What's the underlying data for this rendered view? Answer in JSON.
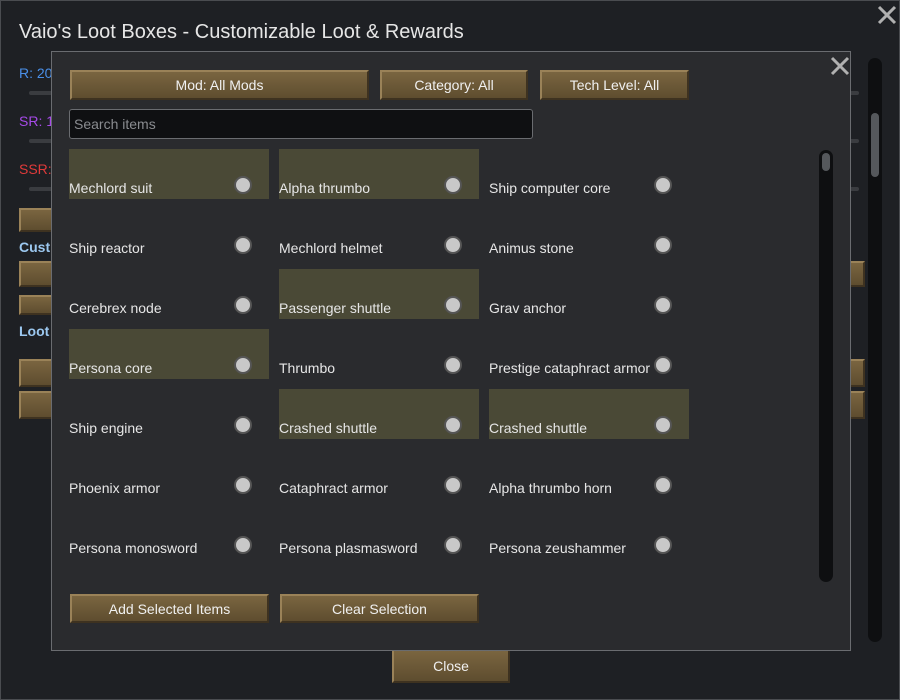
{
  "window": {
    "title": "Vaio's Loot Boxes - Customizable Loot & Rewards",
    "background_labels": [
      {
        "text": "R: 20",
        "color": "#4a8fe8"
      },
      {
        "text": "SR: 1",
        "color": "#a64ae8"
      },
      {
        "text": "SSR:",
        "color": "#e03a3a"
      },
      {
        "text": "Cust",
        "color": "#9cc8f0"
      },
      {
        "text": "Loot",
        "color": "#9cc8f0"
      }
    ],
    "close": "Close"
  },
  "dialog": {
    "filters": [
      "Mod: All Mods",
      "Category: All",
      "Tech Level: All"
    ],
    "search_placeholder": "Search items",
    "items": [
      {
        "label": "Mechlord suit",
        "selected": true
      },
      {
        "label": "Alpha thrumbo",
        "selected": true
      },
      {
        "label": "Ship computer core",
        "selected": false
      },
      {
        "label": "Ship reactor",
        "selected": false
      },
      {
        "label": "Mechlord helmet",
        "selected": false
      },
      {
        "label": "Animus stone",
        "selected": false
      },
      {
        "label": "Cerebrex node",
        "selected": false
      },
      {
        "label": "Passenger shuttle",
        "selected": true
      },
      {
        "label": "Grav anchor",
        "selected": false
      },
      {
        "label": "Persona core",
        "selected": true
      },
      {
        "label": "Thrumbo",
        "selected": false
      },
      {
        "label": "Prestige cataphract armor",
        "selected": false
      },
      {
        "label": "Ship engine",
        "selected": false
      },
      {
        "label": "Crashed shuttle",
        "selected": true
      },
      {
        "label": "Crashed shuttle",
        "selected": true
      },
      {
        "label": "Phoenix armor",
        "selected": false
      },
      {
        "label": "Cataphract armor",
        "selected": false
      },
      {
        "label": "Alpha thrumbo horn",
        "selected": false
      },
      {
        "label": "Persona monosword",
        "selected": false
      },
      {
        "label": "Persona plasmasword",
        "selected": false
      },
      {
        "label": "Persona zeushammer",
        "selected": false
      }
    ],
    "actions": [
      "Add Selected Items",
      "Clear Selection"
    ]
  }
}
